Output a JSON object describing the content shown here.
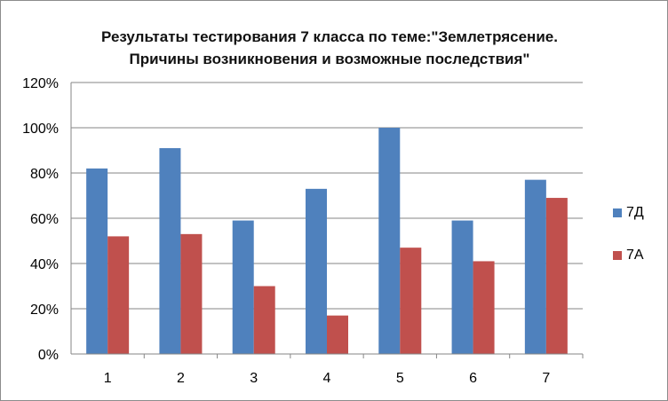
{
  "chart_data": {
    "type": "bar",
    "title_line1": "Результаты тестирования 7 класса по теме:\"Землетрясение.",
    "title_line2": "Причины возникновения и возможные последствия\"",
    "categories": [
      "1",
      "2",
      "3",
      "4",
      "5",
      "6",
      "7"
    ],
    "series": [
      {
        "name": "7Д",
        "color": "#4f81bd",
        "values": [
          82,
          91,
          59,
          73,
          100,
          59,
          77
        ]
      },
      {
        "name": "7А",
        "color": "#c0504d",
        "values": [
          52,
          53,
          30,
          17,
          47,
          41,
          69
        ]
      }
    ],
    "ylim": [
      0,
      120
    ],
    "yticks": [
      "0%",
      "20%",
      "40%",
      "60%",
      "80%",
      "100%",
      "120%"
    ],
    "grid": true,
    "legend_position": "right"
  }
}
